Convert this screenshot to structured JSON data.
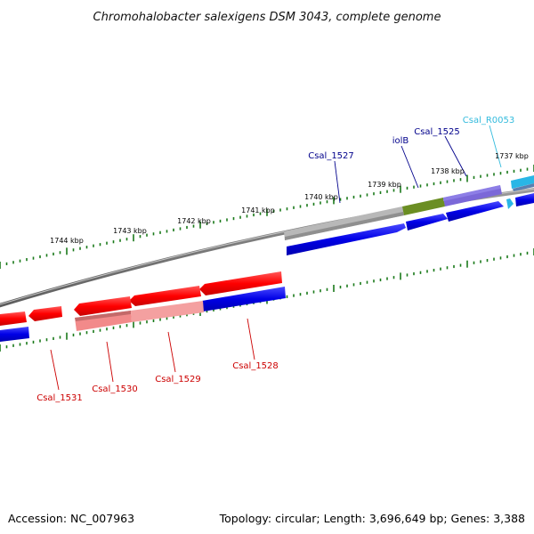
{
  "title": "Chromohalobacter salexigens DSM 3043, complete genome",
  "footer": {
    "accession": "Accession: NC_007963",
    "summary": "Topology: circular; Length: 3,696,649 bp; Genes: 3,388"
  },
  "colors": {
    "backbone": "#7f7f7f",
    "tick": "#1a7a1a",
    "forward_cds": "#0000e0",
    "reverse_cds": "#ff0000",
    "reverse_gene_faded": "#f28a8a",
    "forward_gene_faded": "#bdbdbd",
    "iolB_gene": "#6b8e23",
    "Csal_1525_gene": "#7b68d8",
    "rRNA": "#29b6e6",
    "label_forward": "#00008b",
    "label_reverse": "#cc0000",
    "label_rna": "#33bbdd"
  },
  "tick_labels": [
    {
      "text": "1737 kbp"
    },
    {
      "text": "1738 kbp"
    },
    {
      "text": "1739 kbp"
    },
    {
      "text": "1740 kbp"
    },
    {
      "text": "1741 kbp"
    },
    {
      "text": "1742 kbp"
    },
    {
      "text": "1743 kbp"
    },
    {
      "text": "1744 kbp"
    }
  ],
  "gene_labels": [
    {
      "text": "Csal_R0053",
      "strand": "rna"
    },
    {
      "text": "Csal_1525",
      "strand": "forward"
    },
    {
      "text": "iolB",
      "strand": "forward"
    },
    {
      "text": "Csal_1527",
      "strand": "forward"
    },
    {
      "text": "Csal_1528",
      "strand": "reverse"
    },
    {
      "text": "Csal_1529",
      "strand": "reverse"
    },
    {
      "text": "Csal_1530",
      "strand": "reverse"
    },
    {
      "text": "Csal_1531",
      "strand": "reverse"
    }
  ]
}
